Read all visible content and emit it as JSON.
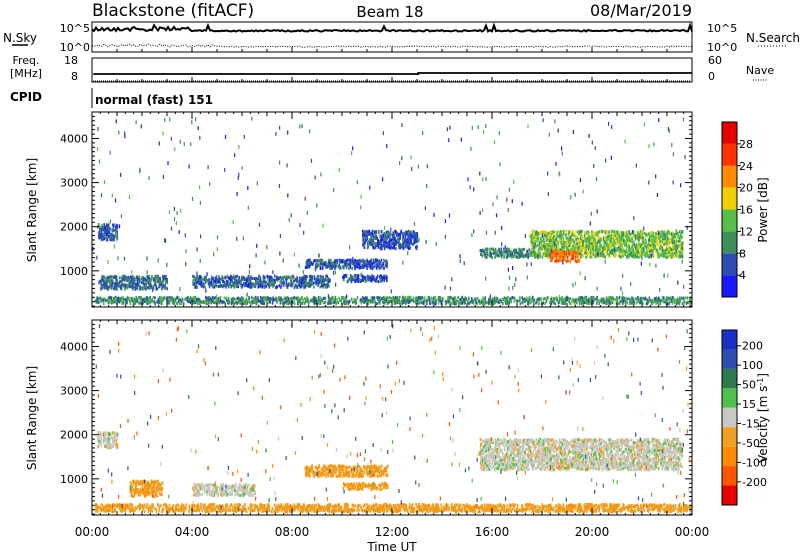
{
  "header": {
    "station": "Blackstone (fitACF)",
    "beam": "Beam 18",
    "date": "08/Mar/2019"
  },
  "side_labels": {
    "nsky": "N.Sky",
    "nsearch": "N.Search",
    "freq_line1": "Freq.",
    "freq_line2": "[MHz]",
    "nave": "Nave",
    "cpid": "CPID",
    "cpid_value": "normal (fast) 151"
  },
  "noise_panel": {
    "left_ticks": [
      "10^5",
      "10^0"
    ],
    "right_ticks": [
      "10^5",
      "10^0"
    ]
  },
  "freq_panel": {
    "left_ticks": [
      "18",
      "8"
    ],
    "right_ticks": [
      "60",
      "0"
    ]
  },
  "power_colorbar": {
    "label": "Power [dB]",
    "ticks": [
      "28",
      "24",
      "20",
      "16",
      "12",
      "8",
      "4"
    ],
    "colors": [
      "#1a1aff",
      "#2a4fb0",
      "#3f8f5a",
      "#56c04a",
      "#f0d000",
      "#ff8c00",
      "#ff3300",
      "#e60000"
    ]
  },
  "velocity_colorbar": {
    "label": "Velocity [m s",
    "label_sup": "-1",
    "label_end": "]",
    "ticks": [
      "200",
      "100",
      "50",
      "15",
      "-15",
      "-50",
      "-100",
      "-200"
    ],
    "colors": [
      "#1a2fc8",
      "#2a4fb0",
      "#2f7a4a",
      "#4fc04a",
      "#c8c8c0",
      "#f0a020",
      "#ff8c00",
      "#ff5500",
      "#e60000"
    ]
  },
  "chart_data": [
    {
      "type": "heatmap",
      "title": "",
      "ylabel": "Slant Range [km]",
      "xlabel": "",
      "ylim": [
        180,
        4600
      ],
      "yticks": [
        "1000",
        "2000",
        "3000",
        "4000"
      ],
      "xticks": [
        "00:00",
        "04:00",
        "08:00",
        "12:00",
        "16:00",
        "20:00",
        "00:00"
      ],
      "regions": [
        {
          "x0": 0.1,
          "x1": 24.0,
          "y0": 250,
          "y1": 400,
          "db": 10
        },
        {
          "x0": 0.2,
          "x1": 1.0,
          "y0": 1700,
          "y1": 2050,
          "db": 7
        },
        {
          "x0": 0.3,
          "x1": 3.0,
          "y0": 580,
          "y1": 880,
          "db": 8
        },
        {
          "x0": 4.0,
          "x1": 9.5,
          "y0": 620,
          "y1": 880,
          "db": 7
        },
        {
          "x0": 8.5,
          "x1": 11.8,
          "y0": 1050,
          "y1": 1250,
          "db": 6
        },
        {
          "x0": 10.0,
          "x1": 11.8,
          "y0": 750,
          "y1": 900,
          "db": 6
        },
        {
          "x0": 10.8,
          "x1": 13.0,
          "y0": 1500,
          "y1": 1900,
          "db": 6
        },
        {
          "x0": 15.5,
          "x1": 17.5,
          "y0": 1300,
          "y1": 1500,
          "db": 9
        },
        {
          "x0": 17.5,
          "x1": 23.6,
          "y0": 1300,
          "y1": 1900,
          "db": 14
        },
        {
          "x0": 18.3,
          "x1": 19.5,
          "y0": 1200,
          "y1": 1450,
          "db": 24
        }
      ]
    },
    {
      "type": "heatmap",
      "title": "",
      "ylabel": "Slant Range [km]",
      "xlabel": "Time UT",
      "ylim": [
        180,
        4600
      ],
      "yticks": [
        "1000",
        "2000",
        "3000",
        "4000"
      ],
      "xticks": [
        "00:00",
        "04:00",
        "08:00",
        "12:00",
        "16:00",
        "20:00",
        "00:00"
      ],
      "regions": [
        {
          "x0": 0.1,
          "x1": 24.0,
          "y0": 250,
          "y1": 420,
          "v": -40
        },
        {
          "x0": 0.2,
          "x1": 1.0,
          "y0": 1700,
          "y1": 2050,
          "v": 0
        },
        {
          "x0": 1.5,
          "x1": 2.8,
          "y0": 600,
          "y1": 950,
          "v": -40
        },
        {
          "x0": 4.0,
          "x1": 6.5,
          "y0": 620,
          "y1": 880,
          "v": 0
        },
        {
          "x0": 8.5,
          "x1": 11.8,
          "y0": 1050,
          "y1": 1300,
          "v": -40
        },
        {
          "x0": 10.0,
          "x1": 11.8,
          "y0": 750,
          "y1": 900,
          "v": -40
        },
        {
          "x0": 15.5,
          "x1": 23.6,
          "y0": 1200,
          "y1": 1900,
          "v": 0
        }
      ]
    }
  ]
}
